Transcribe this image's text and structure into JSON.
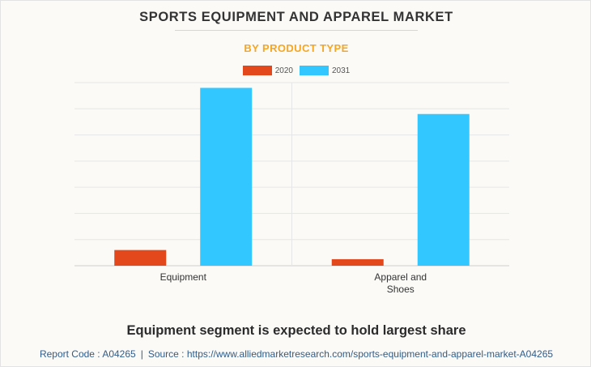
{
  "chart_data": {
    "type": "bar",
    "title": "SPORTS EQUIPMENT AND APPAREL MARKET",
    "subtitle": "BY PRODUCT TYPE",
    "categories": [
      "Equipment",
      "Apparel and Shoes"
    ],
    "series": [
      {
        "name": "2020",
        "color": "#e2481b",
        "values": [
          6,
          2.5
        ]
      },
      {
        "name": "2031",
        "color": "#33c7ff",
        "values": [
          68,
          58
        ]
      }
    ],
    "ylim": [
      0,
      70
    ],
    "grid": true,
    "legend_position": "top-center"
  },
  "headline": "Equipment segment is expected to hold largest share",
  "footer": {
    "report_code": "Report Code : A04265",
    "separator": "|",
    "source": "Source : https://www.alliedmarketresearch.com/sports-equipment-and-apparel-market-A04265"
  }
}
